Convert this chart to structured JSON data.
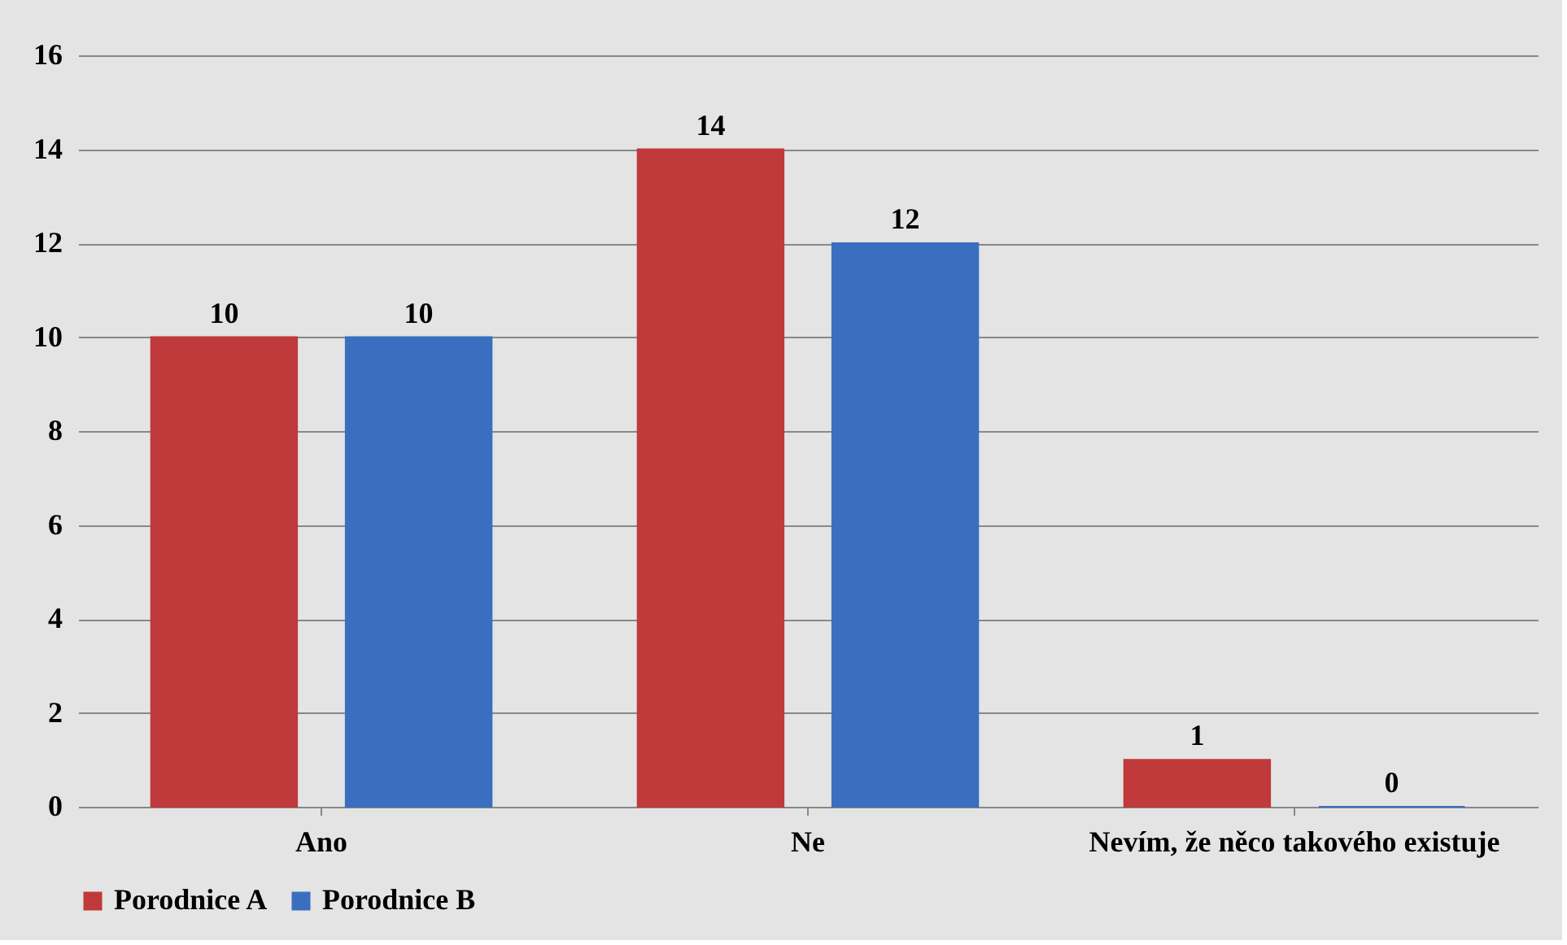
{
  "chart_data": {
    "type": "bar",
    "categories": [
      "Ano",
      "Ne",
      "Nevím, že něco takového existuje"
    ],
    "series": [
      {
        "name": "Porodnice A",
        "color": "#c0393b",
        "values": [
          10,
          14,
          1
        ]
      },
      {
        "name": "Porodnice B",
        "color": "#3a6fc0",
        "values": [
          10,
          12,
          0
        ]
      }
    ],
    "ylim": [
      0,
      16
    ],
    "yticks": [
      0,
      2,
      4,
      6,
      8,
      10,
      12,
      14,
      16
    ],
    "grid": "y",
    "legend": "bottom",
    "data_labels": true
  }
}
